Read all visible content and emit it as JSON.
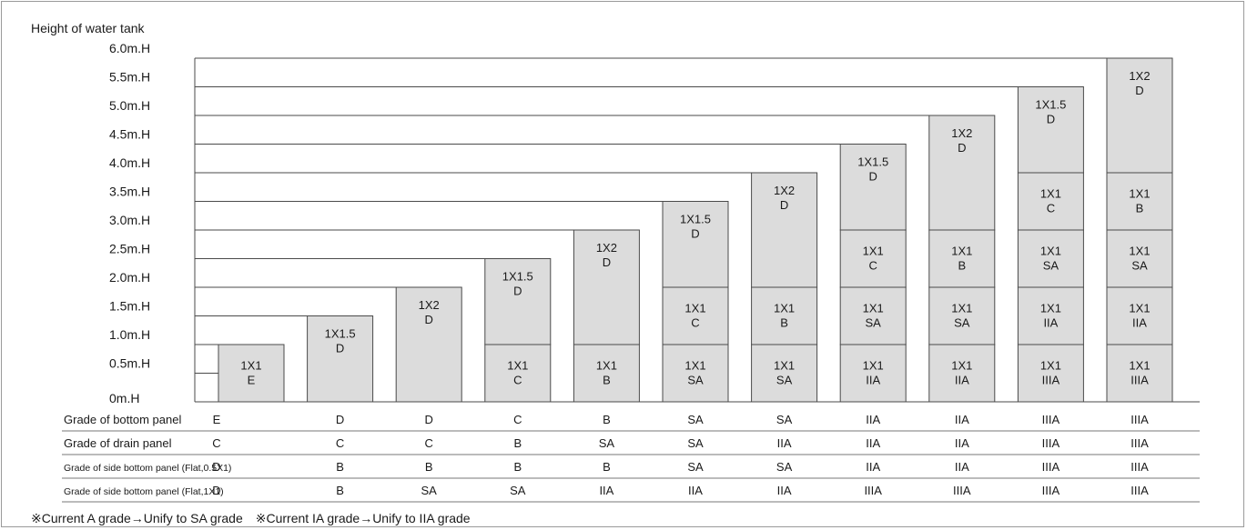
{
  "axis_title": "Height of water tank",
  "y_levels": [
    {
      "value": 0,
      "label": "0m.H"
    },
    {
      "value": 0.5,
      "label": "0.5m.H"
    },
    {
      "value": 1.0,
      "label": "1.0m.H"
    },
    {
      "value": 1.5,
      "label": "1.5m.H"
    },
    {
      "value": 2.0,
      "label": "2.0m.H"
    },
    {
      "value": 2.5,
      "label": "2.5m.H"
    },
    {
      "value": 3.0,
      "label": "3.0m.H"
    },
    {
      "value": 3.5,
      "label": "3.5m.H"
    },
    {
      "value": 4.0,
      "label": "4.0m.H"
    },
    {
      "value": 4.5,
      "label": "4.5m.H"
    },
    {
      "value": 5.0,
      "label": "5.0m.H"
    },
    {
      "value": 5.5,
      "label": "5.5m.H"
    },
    {
      "value": 6.0,
      "label": "6.0m.H"
    }
  ],
  "columns": [
    {
      "height": 1.0,
      "segments": [
        {
          "from": 0,
          "to": 1.0,
          "size": "1X1",
          "grade": "E"
        }
      ]
    },
    {
      "height": 1.5,
      "segments": [
        {
          "from": 0,
          "to": 1.5,
          "size": "1X1.5",
          "grade": "D"
        }
      ]
    },
    {
      "height": 2.0,
      "segments": [
        {
          "from": 0,
          "to": 2.0,
          "size": "1X2",
          "grade": "D"
        }
      ]
    },
    {
      "height": 2.5,
      "segments": [
        {
          "from": 0,
          "to": 1.0,
          "size": "1X1",
          "grade": "C"
        },
        {
          "from": 1.0,
          "to": 2.5,
          "size": "1X1.5",
          "grade": "D"
        }
      ]
    },
    {
      "height": 3.0,
      "segments": [
        {
          "from": 0,
          "to": 1.0,
          "size": "1X1",
          "grade": "B"
        },
        {
          "from": 1.0,
          "to": 3.0,
          "size": "1X2",
          "grade": "D"
        }
      ]
    },
    {
      "height": 3.5,
      "segments": [
        {
          "from": 0,
          "to": 1.0,
          "size": "1X1",
          "grade": "SA"
        },
        {
          "from": 1.0,
          "to": 2.0,
          "size": "1X1",
          "grade": "C"
        },
        {
          "from": 2.0,
          "to": 3.5,
          "size": "1X1.5",
          "grade": "D"
        }
      ]
    },
    {
      "height": 4.0,
      "segments": [
        {
          "from": 0,
          "to": 1.0,
          "size": "1X1",
          "grade": "SA"
        },
        {
          "from": 1.0,
          "to": 2.0,
          "size": "1X1",
          "grade": "B"
        },
        {
          "from": 2.0,
          "to": 4.0,
          "size": "1X2",
          "grade": "D"
        }
      ]
    },
    {
      "height": 4.5,
      "segments": [
        {
          "from": 0,
          "to": 1.0,
          "size": "1X1",
          "grade": "IIA"
        },
        {
          "from": 1.0,
          "to": 2.0,
          "size": "1X1",
          "grade": "SA"
        },
        {
          "from": 2.0,
          "to": 3.0,
          "size": "1X1",
          "grade": "C"
        },
        {
          "from": 3.0,
          "to": 4.5,
          "size": "1X1.5",
          "grade": "D"
        }
      ]
    },
    {
      "height": 5.0,
      "segments": [
        {
          "from": 0,
          "to": 1.0,
          "size": "1X1",
          "grade": "IIA"
        },
        {
          "from": 1.0,
          "to": 2.0,
          "size": "1X1",
          "grade": "SA"
        },
        {
          "from": 2.0,
          "to": 3.0,
          "size": "1X1",
          "grade": "B"
        },
        {
          "from": 3.0,
          "to": 5.0,
          "size": "1X2",
          "grade": "D"
        }
      ]
    },
    {
      "height": 5.5,
      "segments": [
        {
          "from": 0,
          "to": 1.0,
          "size": "1X1",
          "grade": "IIIA"
        },
        {
          "from": 1.0,
          "to": 2.0,
          "size": "1X1",
          "grade": "IIA"
        },
        {
          "from": 2.0,
          "to": 3.0,
          "size": "1X1",
          "grade": "SA"
        },
        {
          "from": 3.0,
          "to": 4.0,
          "size": "1X1",
          "grade": "C"
        },
        {
          "from": 4.0,
          "to": 5.5,
          "size": "1X1.5",
          "grade": "D"
        }
      ]
    },
    {
      "height": 6.0,
      "segments": [
        {
          "from": 0,
          "to": 1.0,
          "size": "1X1",
          "grade": "IIIA"
        },
        {
          "from": 1.0,
          "to": 2.0,
          "size": "1X1",
          "grade": "IIA"
        },
        {
          "from": 2.0,
          "to": 3.0,
          "size": "1X1",
          "grade": "SA"
        },
        {
          "from": 3.0,
          "to": 4.0,
          "size": "1X1",
          "grade": "B"
        },
        {
          "from": 4.0,
          "to": 6.0,
          "size": "1X2",
          "grade": "D"
        }
      ]
    }
  ],
  "table_rows": [
    {
      "label": "Grade of bottom panel",
      "small": false,
      "values": [
        "E",
        "D",
        "D",
        "C",
        "B",
        "SA",
        "SA",
        "IIA",
        "IIA",
        "IIIA",
        "IIIA"
      ]
    },
    {
      "label": "Grade of drain panel",
      "small": false,
      "values": [
        "C",
        "C",
        "C",
        "B",
        "SA",
        "SA",
        "IIA",
        "IIA",
        "IIA",
        "IIIA",
        "IIIA"
      ]
    },
    {
      "label": "Grade of side bottom panel (Flat,0.5X1)",
      "small": true,
      "values": [
        "D",
        "B",
        "B",
        "B",
        "B",
        "SA",
        "SA",
        "IIA",
        "IIA",
        "IIIA",
        "IIIA"
      ]
    },
    {
      "label": "Grade of side bottom panel (Flat,1X1)",
      "small": true,
      "values": [
        "D",
        "B",
        "SA",
        "SA",
        "IIA",
        "IIA",
        "IIA",
        "IIIA",
        "IIIA",
        "IIIA",
        "IIIA"
      ]
    }
  ],
  "footnote": "※Current A grade→Unify to SA grade　※Current IA grade→Unify to IIA grade",
  "colors": {
    "panel_fill": "#dcdcdc",
    "line": "#4a4a4a",
    "frame": "#9a9a9a",
    "text": "#1a1a1a"
  }
}
